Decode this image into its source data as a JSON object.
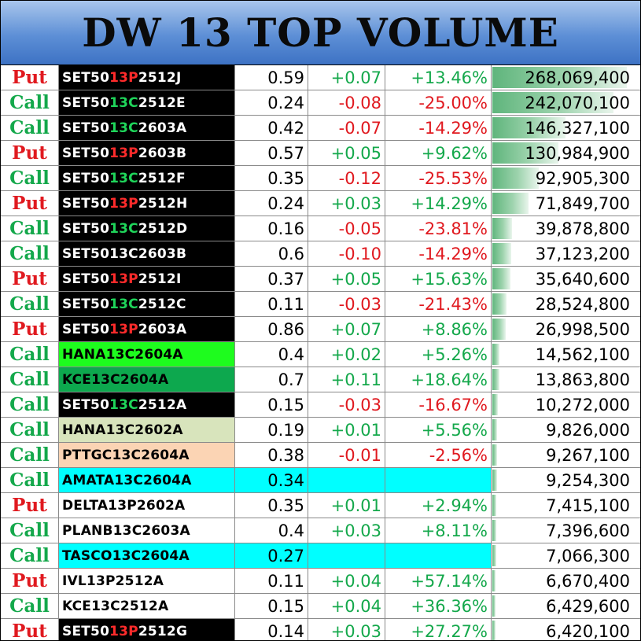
{
  "title": "DW 13 TOP VOLUME",
  "max_volume": 268069400,
  "colors": {
    "put_type": "#e0191f",
    "call_type": "#14a84b",
    "positive": "#14a84b",
    "negative": "#e0191f",
    "volume_bar": "#5fb57c",
    "title_band": "#5d8fd6"
  },
  "rows": [
    {
      "type": "Put",
      "name_parts": [
        "SET50",
        "13P",
        "2512J"
      ],
      "name_bg": "#000000",
      "name_color": "#ffffff",
      "hl_class": "hl-put",
      "price": "0.59",
      "change": "+0.07",
      "change_dir": "pos",
      "pct": "+13.46%",
      "volume": "268,069,400",
      "volume_value": 268069400
    },
    {
      "type": "Call",
      "name_parts": [
        "SET50",
        "13C",
        "2512E"
      ],
      "name_bg": "#000000",
      "name_color": "#ffffff",
      "hl_class": "hl-call",
      "price": "0.24",
      "change": "-0.08",
      "change_dir": "neg",
      "pct": "-25.00%",
      "volume": "242,070,100",
      "volume_value": 242070100
    },
    {
      "type": "Call",
      "name_parts": [
        "SET50",
        "13C",
        "2603A"
      ],
      "name_bg": "#000000",
      "name_color": "#ffffff",
      "hl_class": "hl-call",
      "price": "0.42",
      "change": "-0.07",
      "change_dir": "neg",
      "pct": "-14.29%",
      "volume": "146,327,100",
      "volume_value": 146327100
    },
    {
      "type": "Put",
      "name_parts": [
        "SET50",
        "13P",
        "2603B"
      ],
      "name_bg": "#000000",
      "name_color": "#ffffff",
      "hl_class": "hl-put",
      "price": "0.57",
      "change": "+0.05",
      "change_dir": "pos",
      "pct": "+9.62%",
      "volume": "130,984,900",
      "volume_value": 130984900
    },
    {
      "type": "Call",
      "name_parts": [
        "SET50",
        "13C",
        "2512F"
      ],
      "name_bg": "#000000",
      "name_color": "#ffffff",
      "hl_class": "hl-call",
      "price": "0.35",
      "change": "-0.12",
      "change_dir": "neg",
      "pct": "-25.53%",
      "volume": "92,905,300",
      "volume_value": 92905300
    },
    {
      "type": "Put",
      "name_parts": [
        "SET50",
        "13P",
        "2512H"
      ],
      "name_bg": "#000000",
      "name_color": "#ffffff",
      "hl_class": "hl-put",
      "price": "0.24",
      "change": "+0.03",
      "change_dir": "pos",
      "pct": "+14.29%",
      "volume": "71,849,700",
      "volume_value": 71849700
    },
    {
      "type": "Call",
      "name_parts": [
        "SET50",
        "13C",
        "2512D"
      ],
      "name_bg": "#000000",
      "name_color": "#ffffff",
      "hl_class": "hl-call",
      "price": "0.16",
      "change": "-0.05",
      "change_dir": "neg",
      "pct": "-23.81%",
      "volume": "39,878,800",
      "volume_value": 39878800
    },
    {
      "type": "Call",
      "name_parts": [
        "SET5013C2603B",
        "",
        ""
      ],
      "name_bg": "#000000",
      "name_color": "#ffffff",
      "hl_class": "hl-call",
      "price": "0.6",
      "change": "-0.10",
      "change_dir": "neg",
      "pct": "-14.29%",
      "volume": "37,123,200",
      "volume_value": 37123200
    },
    {
      "type": "Put",
      "name_parts": [
        "SET50",
        "13P",
        "2512I"
      ],
      "name_bg": "#000000",
      "name_color": "#ffffff",
      "hl_class": "hl-put",
      "price": "0.37",
      "change": "+0.05",
      "change_dir": "pos",
      "pct": "+15.63%",
      "volume": "35,640,600",
      "volume_value": 35640600
    },
    {
      "type": "Call",
      "name_parts": [
        "SET50",
        "13C",
        "2512C"
      ],
      "name_bg": "#000000",
      "name_color": "#ffffff",
      "hl_class": "hl-call",
      "price": "0.11",
      "change": "-0.03",
      "change_dir": "neg",
      "pct": "-21.43%",
      "volume": "28,524,800",
      "volume_value": 28524800
    },
    {
      "type": "Put",
      "name_parts": [
        "SET50",
        "13P",
        "2603A"
      ],
      "name_bg": "#000000",
      "name_color": "#ffffff",
      "hl_class": "hl-put",
      "price": "0.86",
      "change": "+0.07",
      "change_dir": "pos",
      "pct": "+8.86%",
      "volume": "26,998,500",
      "volume_value": 26998500
    },
    {
      "type": "Call",
      "name_parts": [
        "HANA13C2604A",
        "",
        ""
      ],
      "name_bg": "#1efc1e",
      "name_color": "#000000",
      "hl_class": "",
      "price": "0.4",
      "change": "+0.02",
      "change_dir": "pos",
      "pct": "+5.26%",
      "volume": "14,562,100",
      "volume_value": 14562100
    },
    {
      "type": "Call",
      "name_parts": [
        "KCE13C2604A",
        "",
        ""
      ],
      "name_bg": "#0da84e",
      "name_color": "#000000",
      "hl_class": "",
      "price": "0.7",
      "change": "+0.11",
      "change_dir": "pos",
      "pct": "+18.64%",
      "volume": "13,863,800",
      "volume_value": 13863800
    },
    {
      "type": "Call",
      "name_parts": [
        "SET50",
        "13C",
        "2512A"
      ],
      "name_bg": "#000000",
      "name_color": "#ffffff",
      "hl_class": "hl-call",
      "price": "0.15",
      "change": "-0.03",
      "change_dir": "neg",
      "pct": "-16.67%",
      "volume": "10,272,000",
      "volume_value": 10272000
    },
    {
      "type": "Call",
      "name_parts": [
        "HANA13C2602A",
        "",
        ""
      ],
      "name_bg": "#d8e4bc",
      "name_color": "#000000",
      "hl_class": "",
      "price": "0.19",
      "change": "+0.01",
      "change_dir": "pos",
      "pct": "+5.56%",
      "volume": "9,826,000",
      "volume_value": 9826000
    },
    {
      "type": "Call",
      "name_parts": [
        "PTTGC13C2604A",
        "",
        ""
      ],
      "name_bg": "#fbd4b4",
      "name_color": "#000000",
      "hl_class": "",
      "price": "0.38",
      "change": "-0.01",
      "change_dir": "neg",
      "pct": "-2.56%",
      "volume": "9,267,100",
      "volume_value": 9267100
    },
    {
      "type": "Call",
      "name_parts": [
        "AMATA13C2604A",
        "",
        ""
      ],
      "name_bg": "#00ffff",
      "name_color": "#000000",
      "hl_class": "",
      "price": "0.34",
      "change": "",
      "change_dir": "",
      "pct": "",
      "volume": "9,254,300",
      "volume_value": 9254300,
      "row_bg": "#00ffff"
    },
    {
      "type": "Put",
      "name_parts": [
        "DELTA13P2602A",
        "",
        ""
      ],
      "name_bg": "#ffffff",
      "name_color": "#000000",
      "hl_class": "",
      "price": "0.35",
      "change": "+0.01",
      "change_dir": "pos",
      "pct": "+2.94%",
      "volume": "7,415,100",
      "volume_value": 7415100
    },
    {
      "type": "Call",
      "name_parts": [
        "PLANB13C2603A",
        "",
        ""
      ],
      "name_bg": "#ffffff",
      "name_color": "#000000",
      "hl_class": "",
      "price": "0.4",
      "change": "+0.03",
      "change_dir": "pos",
      "pct": "+8.11%",
      "volume": "7,396,600",
      "volume_value": 7396600
    },
    {
      "type": "Call",
      "name_parts": [
        "TASCO13C2604A",
        "",
        ""
      ],
      "name_bg": "#00ffff",
      "name_color": "#000000",
      "hl_class": "",
      "price": "0.27",
      "change": "",
      "change_dir": "",
      "pct": "",
      "volume": "7,066,300",
      "volume_value": 7066300,
      "row_bg": "#00ffff"
    },
    {
      "type": "Put",
      "name_parts": [
        "IVL13P2512A",
        "",
        ""
      ],
      "name_bg": "#ffffff",
      "name_color": "#000000",
      "hl_class": "",
      "price": "0.11",
      "change": "+0.04",
      "change_dir": "pos",
      "pct": "+57.14%",
      "volume": "6,670,400",
      "volume_value": 6670400
    },
    {
      "type": "Call",
      "name_parts": [
        "KCE13C2512A",
        "",
        ""
      ],
      "name_bg": "#ffffff",
      "name_color": "#000000",
      "hl_class": "",
      "price": "0.15",
      "change": "+0.04",
      "change_dir": "pos",
      "pct": "+36.36%",
      "volume": "6,429,600",
      "volume_value": 6429600
    },
    {
      "type": "Put",
      "name_parts": [
        "SET50",
        "13P",
        "2512G"
      ],
      "name_bg": "#000000",
      "name_color": "#ffffff",
      "hl_class": "hl-put",
      "price": "0.14",
      "change": "+0.03",
      "change_dir": "pos",
      "pct": "+27.27%",
      "volume": "6,420,100",
      "volume_value": 6420100
    }
  ]
}
